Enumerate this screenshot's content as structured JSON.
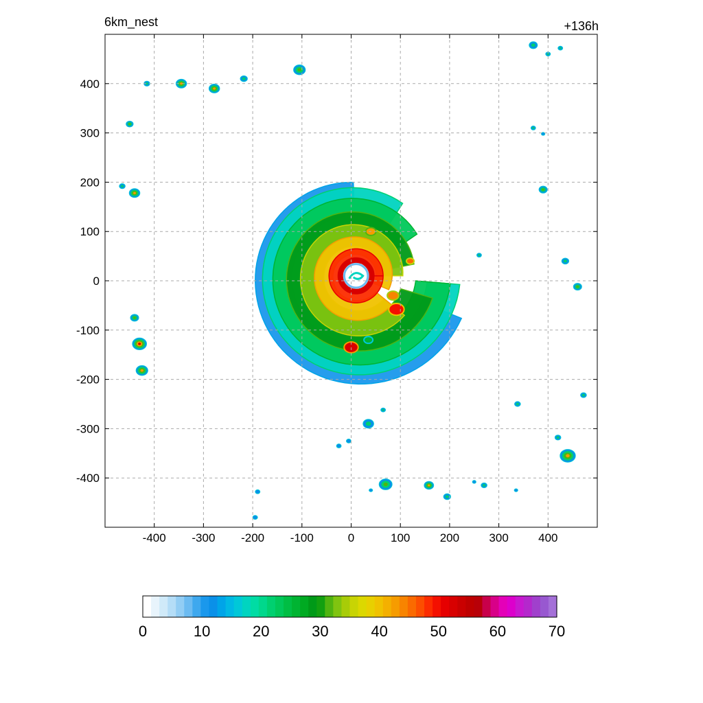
{
  "chart_data": {
    "type": "heatmap",
    "title_left": "6km_nest",
    "title_right": "+136h",
    "xlabel": "",
    "ylabel": "",
    "xlim": [
      -500,
      500
    ],
    "ylim": [
      -500,
      500
    ],
    "xticks": [
      -400,
      -300,
      -200,
      -100,
      0,
      100,
      200,
      300,
      400
    ],
    "yticks": [
      400,
      300,
      200,
      100,
      0,
      -100,
      -200,
      -300,
      -400
    ],
    "grid": true,
    "colorbar": {
      "min": 0,
      "max": 70,
      "ticks": [
        0,
        10,
        20,
        30,
        40,
        50,
        60,
        70
      ],
      "colors": [
        "#ffffff",
        "#e8f4fc",
        "#d0eaf9",
        "#b4ddf7",
        "#92cdf4",
        "#6cbbf1",
        "#3ea8ee",
        "#1a98ec",
        "#0a90e8",
        "#00a4e8",
        "#00b8e4",
        "#00c8d8",
        "#00d4c0",
        "#00dca4",
        "#00d88c",
        "#00d070",
        "#00c85a",
        "#00be44",
        "#00b432",
        "#00aa22",
        "#009a18",
        "#12a010",
        "#50b410",
        "#80c410",
        "#a8cc08",
        "#c8d404",
        "#dcd800",
        "#e8d000",
        "#f0c200",
        "#f4b000",
        "#f69c00",
        "#f88400",
        "#fa6a00",
        "#fc4e00",
        "#fc2c00",
        "#f41000",
        "#e60000",
        "#d80000",
        "#ca0000",
        "#be0000",
        "#b80008",
        "#c8004a",
        "#d80088",
        "#e400b8",
        "#dc00cc",
        "#c818d0",
        "#b428cc",
        "#a040cc",
        "#9858d0",
        "#a470d8"
      ]
    },
    "features": [
      {
        "type": "storm",
        "x": 10,
        "y": 10,
        "radius": 195
      },
      {
        "type": "cell",
        "x": -415,
        "y": 400,
        "r": 5,
        "max": 30
      },
      {
        "type": "cell",
        "x": -345,
        "y": 400,
        "r": 9,
        "max": 45
      },
      {
        "type": "cell",
        "x": -278,
        "y": 390,
        "r": 9,
        "max": 45
      },
      {
        "type": "cell",
        "x": -218,
        "y": 410,
        "r": 6,
        "max": 27
      },
      {
        "type": "cell",
        "x": -105,
        "y": 428,
        "r": 10,
        "max": 38
      },
      {
        "type": "cell",
        "x": -450,
        "y": 318,
        "r": 6,
        "max": 33
      },
      {
        "type": "cell",
        "x": -440,
        "y": 178,
        "r": 9,
        "max": 50
      },
      {
        "type": "cell",
        "x": -465,
        "y": 192,
        "r": 5,
        "max": 22
      },
      {
        "type": "cell",
        "x": -440,
        "y": -75,
        "r": 7,
        "max": 40
      },
      {
        "type": "cell",
        "x": -430,
        "y": -128,
        "r": 12,
        "max": 55
      },
      {
        "type": "cell",
        "x": -425,
        "y": -182,
        "r": 10,
        "max": 45
      },
      {
        "type": "cell",
        "x": 370,
        "y": 478,
        "r": 7,
        "max": 30
      },
      {
        "type": "cell",
        "x": 400,
        "y": 460,
        "r": 4,
        "max": 22
      },
      {
        "type": "cell",
        "x": 425,
        "y": 472,
        "r": 4,
        "max": 28
      },
      {
        "type": "cell",
        "x": 370,
        "y": 310,
        "r": 4,
        "max": 22
      },
      {
        "type": "cell",
        "x": 390,
        "y": 298,
        "r": 3,
        "max": 20
      },
      {
        "type": "cell",
        "x": 390,
        "y": 185,
        "r": 7,
        "max": 32
      },
      {
        "type": "cell",
        "x": 260,
        "y": 52,
        "r": 4,
        "max": 25
      },
      {
        "type": "cell",
        "x": 435,
        "y": 40,
        "r": 6,
        "max": 30
      },
      {
        "type": "cell",
        "x": 460,
        "y": -12,
        "r": 7,
        "max": 38
      },
      {
        "type": "cell",
        "x": 472,
        "y": -232,
        "r": 5,
        "max": 22
      },
      {
        "type": "cell",
        "x": 338,
        "y": -250,
        "r": 5,
        "max": 28
      },
      {
        "type": "cell",
        "x": 420,
        "y": -318,
        "r": 5,
        "max": 30
      },
      {
        "type": "cell",
        "x": 440,
        "y": -355,
        "r": 13,
        "max": 50
      },
      {
        "type": "cell",
        "x": 70,
        "y": -413,
        "r": 11,
        "max": 40
      },
      {
        "type": "cell",
        "x": 158,
        "y": -415,
        "r": 8,
        "max": 45
      },
      {
        "type": "cell",
        "x": 195,
        "y": -438,
        "r": 6,
        "max": 30
      },
      {
        "type": "cell",
        "x": 270,
        "y": -415,
        "r": 5,
        "max": 25
      },
      {
        "type": "cell",
        "x": 250,
        "y": -408,
        "r": 3,
        "max": 18
      },
      {
        "type": "cell",
        "x": 35,
        "y": -290,
        "r": 9,
        "max": 28
      },
      {
        "type": "cell",
        "x": 65,
        "y": -262,
        "r": 4,
        "max": 22
      },
      {
        "type": "cell",
        "x": -5,
        "y": -325,
        "r": 4,
        "max": 20
      },
      {
        "type": "cell",
        "x": -25,
        "y": -335,
        "r": 4,
        "max": 20
      },
      {
        "type": "cell",
        "x": -190,
        "y": -428,
        "r": 4,
        "max": 20
      },
      {
        "type": "cell",
        "x": -195,
        "y": -480,
        "r": 4,
        "max": 20
      },
      {
        "type": "cell",
        "x": 40,
        "y": -425,
        "r": 3,
        "max": 18
      },
      {
        "type": "cell",
        "x": 335,
        "y": -425,
        "r": 3,
        "max": 18
      }
    ]
  }
}
